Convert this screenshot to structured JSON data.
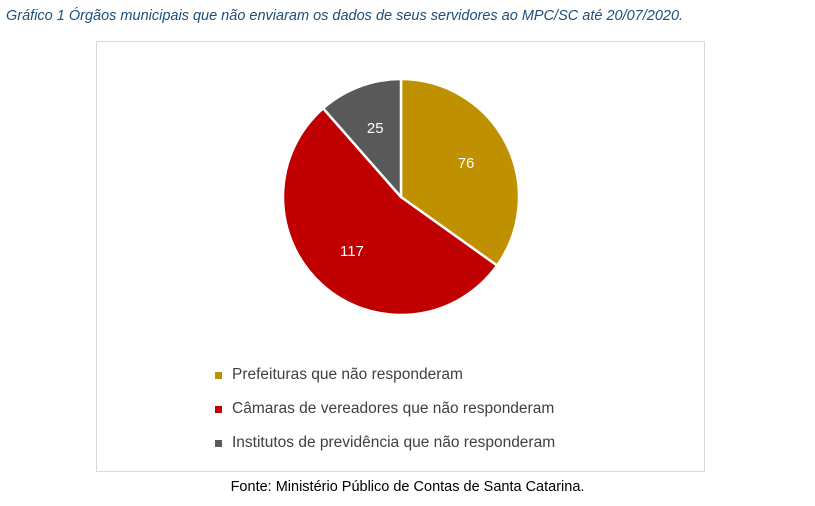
{
  "caption": "Gráfico 1 Órgãos municipais que não enviaram os dados de seus servidores ao MPC/SC até 20/07/2020.",
  "source": "Fonte: Ministério Público de Contas de Santa Catarina.",
  "chart_data": {
    "type": "pie",
    "title": "",
    "start": "12 o'clock",
    "direction": "clockwise",
    "legend_position": "bottom",
    "slices": [
      {
        "label": "Prefeituras que não responderam",
        "value": 76,
        "color": "#bf9000"
      },
      {
        "label": "Câmaras de vereadores que não responderam",
        "value": 117,
        "color": "#c00000"
      },
      {
        "label": "Institutos de previdência que não responderam",
        "value": 25,
        "color": "#595959"
      }
    ]
  }
}
